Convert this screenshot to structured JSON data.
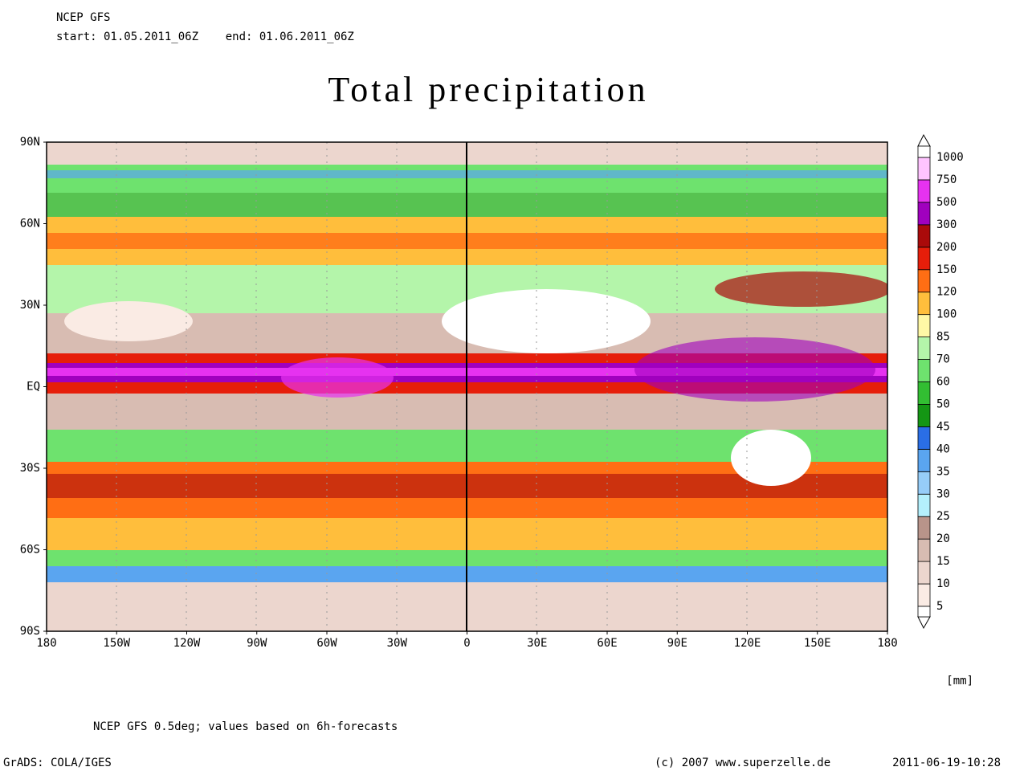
{
  "header": {
    "model": "NCEP GFS",
    "period": "start: 01.05.2011_06Z    end: 01.06.2011_06Z"
  },
  "title": "Total precipitation",
  "axes": {
    "lat": [
      "90N",
      "60N",
      "30N",
      "EQ",
      "30S",
      "60S",
      "90S"
    ],
    "lon": [
      "180",
      "150W",
      "120W",
      "90W",
      "60W",
      "30W",
      "0",
      "30E",
      "60E",
      "90E",
      "120E",
      "150E",
      "180"
    ]
  },
  "legend": {
    "levels": [
      5,
      10,
      15,
      20,
      25,
      30,
      35,
      40,
      45,
      50,
      60,
      70,
      85,
      100,
      120,
      150,
      200,
      300,
      500,
      750,
      1000
    ],
    "colors": [
      "#faebe4",
      "#ecd6ce",
      "#d8bcb2",
      "#b8948a",
      "#b4f0fc",
      "#96cdf8",
      "#5aa5f0",
      "#2a6ee6",
      "#149614",
      "#32be32",
      "#6ee26e",
      "#b4f5aa",
      "#fff8a6",
      "#ffbe3c",
      "#ff6e14",
      "#e61e0a",
      "#aa0a0a",
      "#a000be",
      "#e632f0",
      "#ffc4ff"
    ],
    "unit": "[mm]"
  },
  "footer": {
    "note": "NCEP GFS 0.5deg; values based on 6h-forecasts",
    "software": "GrADS: COLA/IGES",
    "credit": "(c) 2007 www.superzelle.de",
    "timestamp": "2011-06-19-10:28"
  }
}
